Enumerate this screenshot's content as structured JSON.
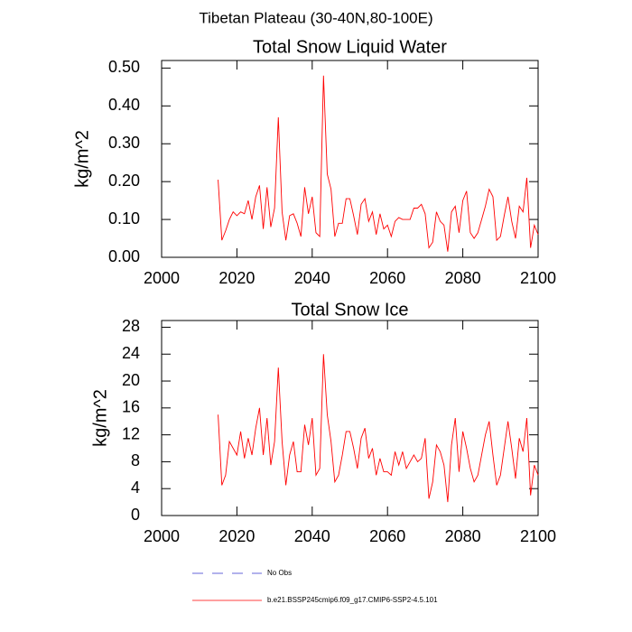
{
  "title": "Tibetan Plateau (30-40N,80-100E)",
  "legend": [
    {
      "name": "No Obs",
      "color": "#3333cc",
      "dash": true
    },
    {
      "name": "b.e21.BSSP245cmip6.f09_g17.CMIP6-SSP2-4.5.101",
      "color": "#ff0000",
      "dash": false
    }
  ],
  "chart_data": [
    {
      "type": "line",
      "title": "Total Snow Liquid Water",
      "ylabel": "kg/m^2",
      "color": "#ff0000",
      "xlim": [
        2000,
        2100
      ],
      "xticks": [
        2000,
        2020,
        2040,
        2060,
        2080,
        2100
      ],
      "ylim": [
        0,
        0.52
      ],
      "yticks": [
        {
          "value": 0,
          "label": "0.00"
        },
        {
          "value": 0.1,
          "label": "0.10"
        },
        {
          "value": 0.2,
          "label": "0.20"
        },
        {
          "value": 0.3,
          "label": "0.30"
        },
        {
          "value": 0.4,
          "label": "0.40"
        },
        {
          "value": 0.5,
          "label": "0.50"
        }
      ],
      "x": [
        2015,
        2016,
        2017,
        2018,
        2019,
        2020,
        2021,
        2022,
        2023,
        2024,
        2025,
        2026,
        2027,
        2028,
        2029,
        2030,
        2031,
        2032,
        2033,
        2034,
        2035,
        2036,
        2037,
        2038,
        2039,
        2040,
        2041,
        2042,
        2043,
        2044,
        2045,
        2046,
        2047,
        2048,
        2049,
        2050,
        2051,
        2052,
        2053,
        2054,
        2055,
        2056,
        2057,
        2058,
        2059,
        2060,
        2061,
        2062,
        2063,
        2064,
        2065,
        2066,
        2067,
        2068,
        2069,
        2070,
        2071,
        2072,
        2073,
        2074,
        2075,
        2076,
        2077,
        2078,
        2079,
        2080,
        2081,
        2082,
        2083,
        2084,
        2085,
        2086,
        2087,
        2088,
        2089,
        2090,
        2091,
        2092,
        2093,
        2094,
        2095,
        2096,
        2097,
        2098,
        2099,
        2100
      ],
      "values": [
        0.205,
        0.045,
        0.07,
        0.1,
        0.12,
        0.11,
        0.12,
        0.115,
        0.15,
        0.1,
        0.16,
        0.19,
        0.075,
        0.185,
        0.08,
        0.13,
        0.37,
        0.12,
        0.045,
        0.11,
        0.115,
        0.09,
        0.055,
        0.185,
        0.115,
        0.16,
        0.065,
        0.055,
        0.48,
        0.22,
        0.18,
        0.055,
        0.09,
        0.09,
        0.155,
        0.155,
        0.11,
        0.06,
        0.14,
        0.155,
        0.095,
        0.12,
        0.06,
        0.115,
        0.075,
        0.085,
        0.055,
        0.095,
        0.105,
        0.1,
        0.1,
        0.1,
        0.13,
        0.13,
        0.14,
        0.115,
        0.025,
        0.04,
        0.12,
        0.095,
        0.085,
        0.015,
        0.12,
        0.135,
        0.065,
        0.15,
        0.175,
        0.065,
        0.05,
        0.065,
        0.1,
        0.135,
        0.18,
        0.16,
        0.045,
        0.055,
        0.11,
        0.16,
        0.095,
        0.05,
        0.135,
        0.12,
        0.21,
        0.025,
        0.085,
        0.06
      ]
    },
    {
      "type": "line",
      "title": "Total Snow Ice",
      "ylabel": "kg/m^2",
      "color": "#ff0000",
      "xlim": [
        2000,
        2100
      ],
      "xticks": [
        2000,
        2020,
        2040,
        2060,
        2080,
        2100
      ],
      "ylim": [
        0,
        29
      ],
      "yticks": [
        0,
        4,
        8,
        12,
        16,
        20,
        24,
        28
      ],
      "x": [
        2015,
        2016,
        2017,
        2018,
        2019,
        2020,
        2021,
        2022,
        2023,
        2024,
        2025,
        2026,
        2027,
        2028,
        2029,
        2030,
        2031,
        2032,
        2033,
        2034,
        2035,
        2036,
        2037,
        2038,
        2039,
        2040,
        2041,
        2042,
        2043,
        2044,
        2045,
        2046,
        2047,
        2048,
        2049,
        2050,
        2051,
        2052,
        2053,
        2054,
        2055,
        2056,
        2057,
        2058,
        2059,
        2060,
        2061,
        2062,
        2063,
        2064,
        2065,
        2066,
        2067,
        2068,
        2069,
        2070,
        2071,
        2072,
        2073,
        2074,
        2075,
        2076,
        2077,
        2078,
        2079,
        2080,
        2081,
        2082,
        2083,
        2084,
        2085,
        2086,
        2087,
        2088,
        2089,
        2090,
        2091,
        2092,
        2093,
        2094,
        2095,
        2096,
        2097,
        2098,
        2099,
        2100
      ],
      "values": [
        15,
        4.5,
        6,
        11,
        10,
        9,
        12.5,
        8.5,
        11.5,
        9,
        13,
        16,
        9,
        14.5,
        7.5,
        11,
        22,
        11,
        4.5,
        9,
        11,
        6.5,
        6.5,
        13.5,
        10.5,
        14.5,
        6,
        7,
        24,
        15,
        11,
        5,
        6,
        9,
        12.5,
        12.5,
        10,
        7,
        11.5,
        13,
        8.5,
        10,
        6,
        8.5,
        6.5,
        6.5,
        6,
        9.5,
        7.5,
        9.5,
        7,
        8,
        9,
        8,
        8.5,
        11.5,
        2.5,
        5,
        10.5,
        9.5,
        7.5,
        2,
        10.5,
        14.5,
        6.5,
        12.5,
        10,
        7,
        5,
        6,
        9,
        12,
        14,
        9,
        4.5,
        6,
        10,
        14,
        10,
        5.5,
        11.5,
        9.5,
        14.5,
        3,
        7.5,
        6
      ]
    }
  ]
}
